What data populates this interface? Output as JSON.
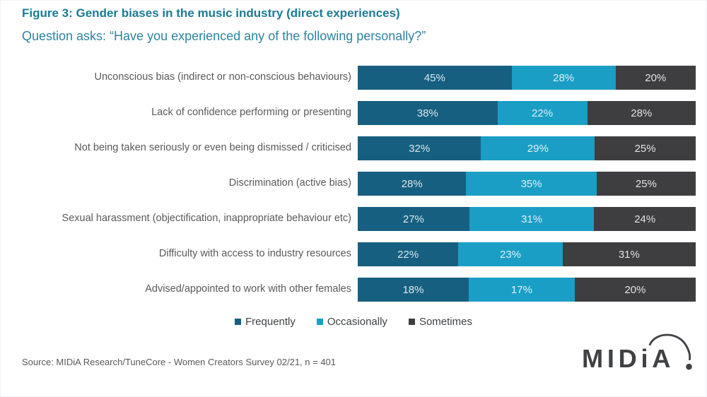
{
  "title": "Figure 3: Gender biases in the music industry (direct experiences)",
  "subtitle": "Question asks: “Have you experienced any of the following personally?”",
  "source": "Source: MIDiA Research/TuneCore - Women Creators Survey 02/21, n = 401",
  "logo": {
    "text": "MIDiA"
  },
  "colors": {
    "title": "#1B7B95",
    "subtitle": "#2C84A0",
    "frequently": "#165F80",
    "occasionally": "#1B9EC5",
    "sometimes": "#3E3E40",
    "logo": "#3F4144"
  },
  "chart_data": {
    "type": "bar",
    "orientation": "horizontal-stacked-normalized",
    "title": "Figure 3: Gender biases in the music industry (direct experiences)",
    "subtitle": "Question asks: “Have you experienced any of the following personally?”",
    "value_suffix": "%",
    "grid": false,
    "legend_position": "bottom",
    "categories": [
      "Unconscious bias (indirect or non-conscious behaviours)",
      "Lack of confidence performing or presenting",
      "Not being taken seriously or even being dismissed / criticised",
      "Discrimination (active bias)",
      "Sexual harassment (objectification, inappropriate behaviour etc)",
      "Difficulty with access to industry resources",
      "Advised/appointed to work with other females"
    ],
    "series": [
      {
        "name": "Frequently",
        "color": "#165F80",
        "values": [
          45,
          38,
          32,
          28,
          27,
          22,
          18
        ]
      },
      {
        "name": "Occasionally",
        "color": "#1B9EC5",
        "values": [
          28,
          22,
          29,
          35,
          31,
          23,
          17
        ]
      },
      {
        "name": "Sometimes",
        "color": "#3E3E40",
        "values": [
          20,
          28,
          25,
          25,
          24,
          31,
          20
        ]
      }
    ]
  }
}
